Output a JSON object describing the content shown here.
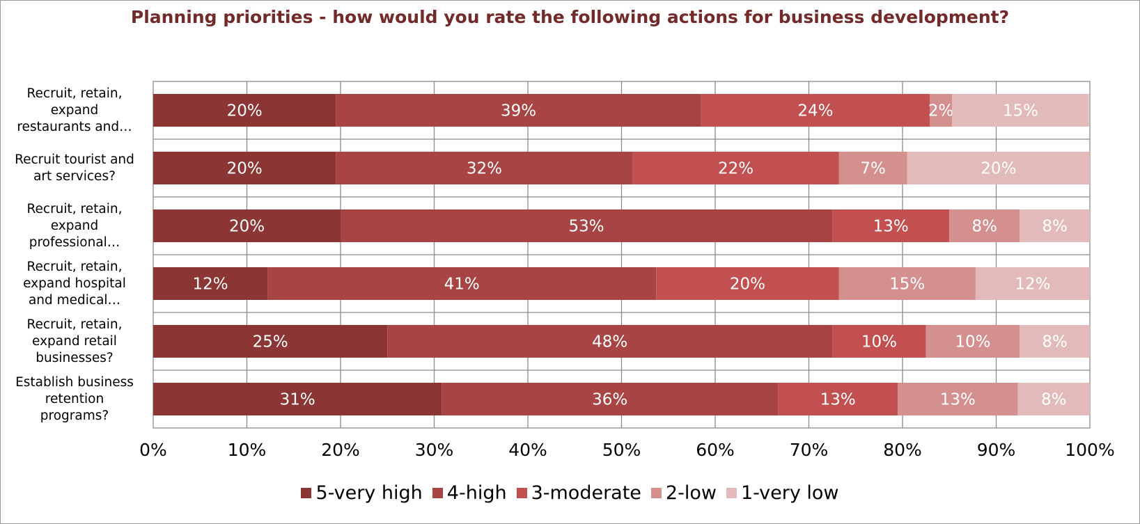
{
  "chart_data": {
    "type": "bar",
    "orientation": "horizontal",
    "stacked": "percent",
    "title": "Planning priorities - how would you rate the following actions for business development?",
    "categories": [
      "Recruit, retain, expand restaurants and…",
      "Recruit tourist and art services?",
      "Recruit, retain, expand professional…",
      "Recruit, retain, expand hospital and medical…",
      "Recruit, retain, expand retail businesses?",
      "Establish business retention programs?"
    ],
    "category_lines": [
      [
        "Recruit, retain,",
        "expand",
        "restaurants and…"
      ],
      [
        "Recruit tourist and",
        "art services?"
      ],
      [
        "Recruit, retain,",
        "expand",
        "professional…"
      ],
      [
        "Recruit, retain,",
        "expand hospital",
        "and medical…"
      ],
      [
        "Recruit, retain,",
        "expand retail",
        "businesses?"
      ],
      [
        "Establish business",
        "retention",
        "programs?"
      ]
    ],
    "series": [
      {
        "name": "5-very high",
        "color": "#8b3535",
        "values": [
          0.195,
          0.195,
          0.2,
          0.122,
          0.25,
          0.308
        ]
      },
      {
        "name": "4-high",
        "color": "#a84444",
        "values": [
          0.39,
          0.317,
          0.525,
          0.415,
          0.475,
          0.359
        ]
      },
      {
        "name": "3-moderate",
        "color": "#c25050",
        "values": [
          0.244,
          0.22,
          0.125,
          0.195,
          0.1,
          0.128
        ]
      },
      {
        "name": "2-low",
        "color": "#d48f8f",
        "values": [
          0.024,
          0.073,
          0.075,
          0.146,
          0.1,
          0.128
        ]
      },
      {
        "name": "1-very low",
        "color": "#e2baba",
        "values": [
          0.146,
          0.195,
          0.075,
          0.122,
          0.075,
          0.077
        ]
      }
    ],
    "data_labels": [
      [
        "20%",
        "39%",
        "24%",
        "2%",
        "15%"
      ],
      [
        "20%",
        "32%",
        "22%",
        "7%",
        "20%"
      ],
      [
        "20%",
        "53%",
        "13%",
        "8%",
        "8%"
      ],
      [
        "12%",
        "41%",
        "20%",
        "15%",
        "12%"
      ],
      [
        "25%",
        "48%",
        "10%",
        "10%",
        "8%"
      ],
      [
        "31%",
        "36%",
        "13%",
        "13%",
        "8%"
      ]
    ],
    "x_ticks": [
      "0%",
      "10%",
      "20%",
      "30%",
      "40%",
      "50%",
      "60%",
      "70%",
      "80%",
      "90%",
      "100%"
    ],
    "xlim": [
      0,
      1
    ],
    "grid": true,
    "legend_position": "bottom"
  }
}
